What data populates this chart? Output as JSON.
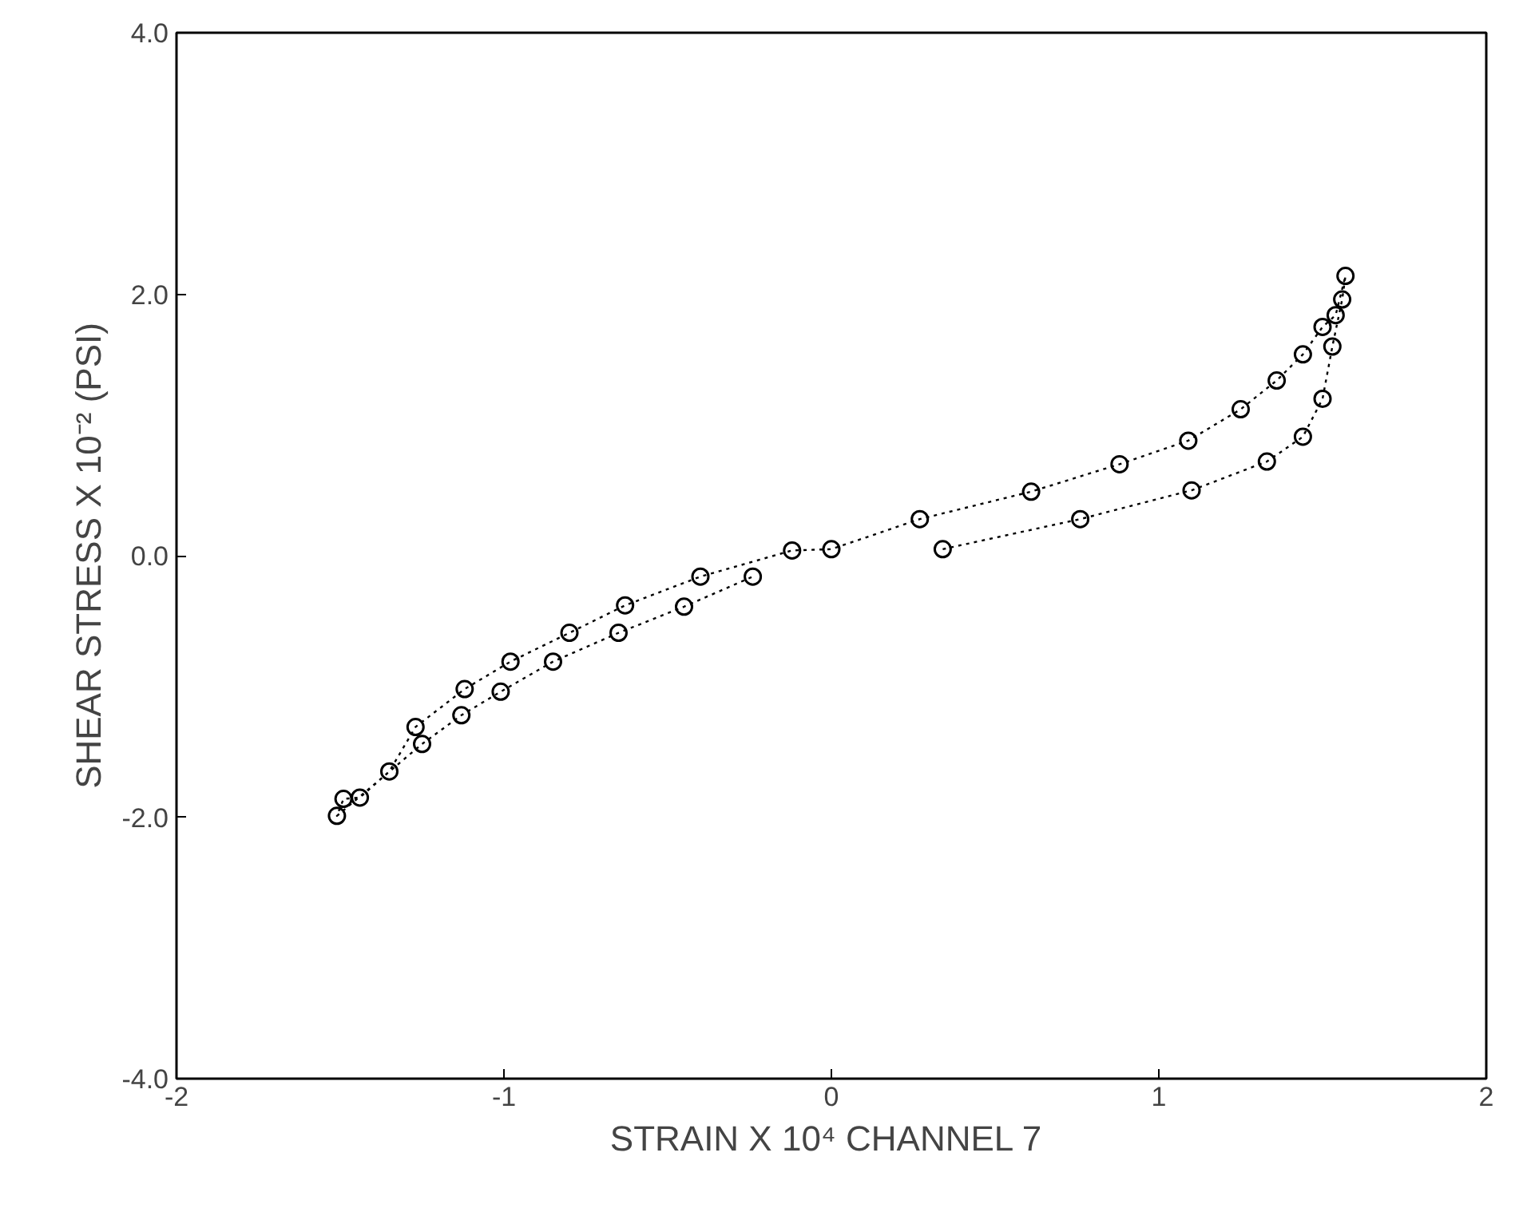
{
  "chart_data": {
    "type": "line",
    "xlabel": "STRAIN X 10⁴ CHANNEL  7",
    "ylabel": "SHEAR STRESS X 10⁻² (PSI)",
    "xlim": [
      -2,
      2
    ],
    "ylim": [
      -4,
      4
    ],
    "xticks": [
      -2,
      -1,
      0,
      1,
      2
    ],
    "yticks": [
      {
        "value": -4,
        "label": "-4.0"
      },
      {
        "value": -2,
        "label": "-2.0"
      },
      {
        "value": 0,
        "label": "0.0"
      },
      {
        "value": 2,
        "label": "2.0"
      },
      {
        "value": 4,
        "label": "4.0"
      }
    ],
    "grid": false,
    "marker": "circle",
    "line_style": "dotted",
    "series": [
      {
        "color": "#000000",
        "x": [
          0.34,
          0.76,
          1.1,
          1.33,
          1.44,
          1.5,
          1.53,
          1.56,
          1.57,
          1.54,
          1.5,
          1.44,
          1.36,
          1.25,
          1.09,
          0.88,
          0.61,
          0.27,
          0,
          -0.12,
          -0.4,
          -0.63,
          -0.8,
          -0.98,
          -1.12,
          -1.27,
          -1.35,
          -1.44,
          -1.49,
          -1.51,
          -1.25,
          -1.13,
          -1.01,
          -0.85,
          -0.65,
          -0.45,
          -0.24
        ],
        "values": [
          0.05,
          0.28,
          0.5,
          0.72,
          0.91,
          1.2,
          1.6,
          1.96,
          2.14,
          1.84,
          1.75,
          1.54,
          1.34,
          1.12,
          0.88,
          0.7,
          0.49,
          0.28,
          0.05,
          0.04,
          -0.16,
          -0.38,
          -0.59,
          -0.81,
          -1.02,
          -1.31,
          -1.65,
          -1.85,
          -1.86,
          -1.99,
          -1.44,
          -1.22,
          -1.04,
          -0.81,
          -0.59,
          -0.39,
          -0.16
        ]
      }
    ]
  }
}
